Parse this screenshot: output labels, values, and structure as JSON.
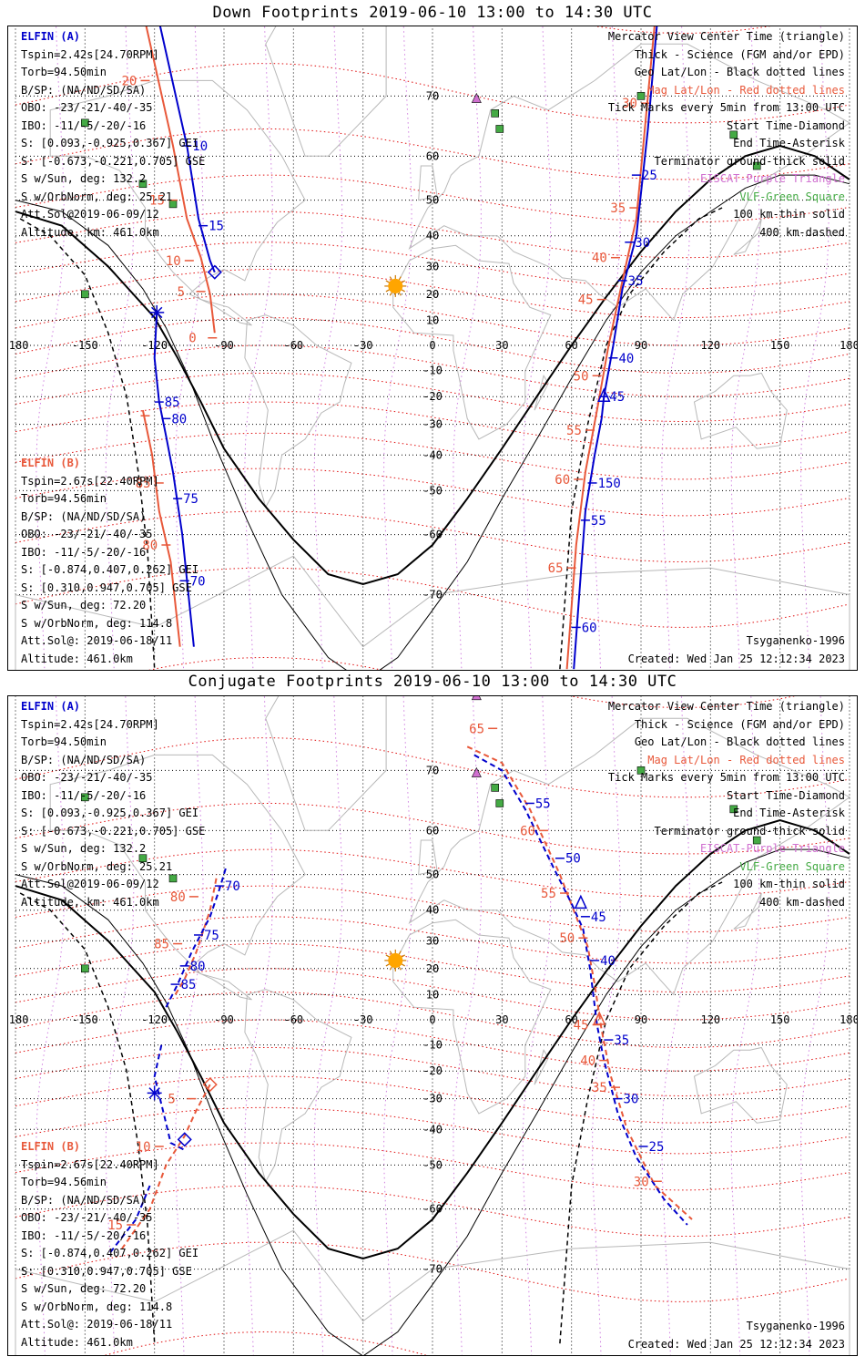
{
  "panels": [
    {
      "title": "Down Footprints 2019-06-10 13:00 to 14:30 UTC",
      "kind": "down",
      "elfin_a": {
        "name": "ELFIN (A)",
        "lines": [
          "Tspin=2.42s[24.70RPM]",
          "Torb=94.50min",
          "B/SP: (NA/ND/SD/SA)",
          "OBO: -23/-21/-40/-35",
          "IBO: -11/-5/-20/-16",
          "S: [0.093,-0.925,0.367] GEI",
          "S: [-0.673,-0.221,0.705] GSE",
          "S w/Sun, deg: 132.2",
          "S w/OrbNorm, deg: 25.21",
          "Att.Sol@2019-06-09/12",
          "Altitude, km: 461.0km"
        ]
      },
      "elfin_b": {
        "name": "ELFIN (B)",
        "lines": [
          "Tspin=2.67s[22.40RPM]",
          "Torb=94.56min",
          "B/SP: (NA/ND/SD/SA)",
          "OBO: -23/-21/-40/-35",
          "IBO: -11/-5/-20/-16",
          "S: [-0.874,0.407,0.262] GEI",
          "S: [0.310,0.947,0.705] GSE",
          "S w/Sun, deg: 72.20",
          "S w/OrbNorm, deg: 114.8",
          "Att.Sol@: 2019-06-18/11",
          "Altitude: 461.0km"
        ]
      },
      "legend": [
        "Mercator View Center Time (triangle)",
        "Thick - Science (FGM and/or EPD)",
        "Geo Lat/Lon - Black dotted lines",
        "Mag Lat/Lon - Red dotted lines",
        "Tick Marks every 5min from 13:00 UTC",
        "Start Time-Diamond",
        "End Time-Asterisk",
        "Terminator ground-thick solid",
        "EISCAT-Purple Triangle",
        "VLF-Green Square",
        "100 km-thin solid",
        "400 km-dashed"
      ],
      "model": "Tsyganenko-1996",
      "created": "Created: Wed Jan 25 12:12:34 2023"
    },
    {
      "title": "Conjugate Footprints 2019-06-10 13:00 to 14:30 UTC",
      "kind": "conj",
      "elfin_a": {
        "name": "ELFIN (A)",
        "lines": [
          "Tspin=2.42s[24.70RPM]",
          "Torb=94.50min",
          "B/SP: (NA/ND/SD/SA)",
          "OBO: -23/-21/-40/-35",
          "IBO: -11/-5/-20/-16",
          "S: [0.093,-0.925,0.367] GEI",
          "S: [-0.673,-0.221,0.705] GSE",
          "S w/Sun, deg: 132.2",
          "S w/OrbNorm, deg: 25.21",
          "Att.Sol@2019-06-09/12",
          "Altitude, km: 461.0km"
        ]
      },
      "elfin_b": {
        "name": "ELFIN (B)",
        "lines": [
          "Tspin=2.67s[22.40RPM]",
          "Torb=94.56min",
          "B/SP: (NA/ND/SD/SA)",
          "OBO: -23/-21/-40/-35",
          "IBO: -11/-5/-20/-16",
          "S: [-0.874,0.407,0.262] GEI",
          "S: [0.310,0.947,0.705] GSE",
          "S w/Sun, deg: 72.20",
          "S w/OrbNorm, deg: 114.8",
          "Att.Sol@: 2019-06-18/11",
          "Altitude: 461.0km"
        ]
      },
      "legend": [
        "Mercator View Center Time (triangle)",
        "Thick - Science (FGM and/or EPD)",
        "Geo Lat/Lon - Black dotted lines",
        "Mag Lat/Lon - Red dotted lines",
        "Tick Marks every 5min from 13:00 UTC",
        "Start Time-Diamond",
        "End Time-Asterisk",
        "Terminator ground-thick solid",
        "EISCAT-Purple Triangle",
        "VLF-Green Square",
        "100 km-thin solid",
        "400 km-dashed"
      ],
      "model": "Tsyganenko-1996",
      "created": "Created: Wed Jan 25 12:12:34 2023"
    }
  ],
  "map_axes": {
    "lon_ticks": [
      -180,
      -150,
      -120,
      -90,
      -60,
      -30,
      0,
      30,
      60,
      90,
      120,
      150,
      180
    ],
    "lon_labels": [
      "-180",
      "-150",
      "-120",
      "-90",
      "-60",
      "-30",
      "0",
      "30",
      "60",
      "90",
      "120",
      "150",
      "180"
    ],
    "lat_ticks": [
      70,
      60,
      50,
      40,
      30,
      20,
      10,
      0,
      -10,
      -20,
      -30,
      -40,
      -50,
      -60,
      -70
    ],
    "lat_labels": [
      "70",
      "60",
      "50",
      "40",
      "30",
      "20",
      "10",
      "0",
      "-10",
      "-20",
      "-30",
      "-40",
      "-50",
      "-60",
      "-70"
    ]
  },
  "colors": {
    "elfin_a": "#0000cc",
    "elfin_b": "#e8583a",
    "mag_grid": "#e01010",
    "geo_grid": "#000000",
    "eiscat": "#d070d0",
    "vlf": "#44aa44",
    "sun": "#ffa500",
    "coast": "#b8b8b8"
  },
  "stations": {
    "eiscat": [
      [
        19,
        78
      ],
      [
        19,
        69.6
      ]
    ],
    "vlf": [
      [
        -150,
        66
      ],
      [
        -125,
        54
      ],
      [
        -112,
        49
      ],
      [
        27,
        67.5
      ],
      [
        29,
        65
      ],
      [
        90,
        70
      ],
      [
        130,
        64
      ],
      [
        140,
        58
      ],
      [
        -150,
        20
      ]
    ]
  },
  "subsolar_point": [
    -16,
    23
  ],
  "tracks": {
    "down": {
      "a": [
        {
          "seg": [
            [
              -118,
              78
            ],
            [
              -106,
              62
            ],
            [
              -101,
              45
            ],
            [
              -96,
              32
            ],
            [
              -94,
              28
            ]
          ],
          "ticks": [
            [
              -106,
              62,
              "10"
            ],
            [
              -99,
              43,
              "15"
            ]
          ]
        },
        {
          "seg": [
            [
              -119,
              13
            ],
            [
              -120,
              -5
            ],
            [
              -118,
              -22
            ],
            [
              -115,
              -34
            ],
            [
              -112,
              -45
            ],
            [
              -108,
              -60
            ],
            [
              -103,
              -76
            ]
          ],
          "ticks": [
            [
              -118,
              -22,
              "85"
            ],
            [
              -115,
              -28,
              "80"
            ],
            [
              -110,
              -52,
              "75"
            ],
            [
              -107,
              -68,
              "70"
            ]
          ]
        },
        {
          "seg": [
            [
              61,
              -78
            ],
            [
              66,
              -55
            ],
            [
              70,
              -40
            ],
            [
              73,
              -28
            ],
            [
              74,
              -20
            ],
            [
              78,
              0
            ],
            [
              82,
              22
            ],
            [
              88,
              40
            ],
            [
              93,
              65
            ],
            [
              97,
              78
            ]
          ],
          "ticks": [
            [
              62,
              -74,
              "60"
            ],
            [
              66,
              -57,
              "55"
            ],
            [
              69,
              -48,
              "150"
            ],
            [
              74,
              -20,
              "45"
            ],
            [
              78,
              -5,
              "40"
            ],
            [
              82,
              25,
              "35"
            ],
            [
              85,
              38,
              "30"
            ],
            [
              88,
              56,
              "25"
            ]
          ]
        }
      ],
      "b": [
        {
          "seg": [
            [
              -124,
              78
            ],
            [
              -112,
              62
            ],
            [
              -106,
              45
            ],
            [
              -100,
              33
            ],
            [
              -96,
              20
            ],
            [
              -94,
              5
            ]
          ],
          "ticks": [
            [
              -124,
              72,
              "20"
            ],
            [
              -112,
              50,
              "15"
            ],
            [
              -105,
              32,
              "10"
            ],
            [
              -100,
              21,
              "5"
            ],
            [
              -95,
              3,
              "0"
            ]
          ]
        },
        {
          "seg": [
            [
              -125,
              -25
            ],
            [
              -121,
              -40
            ],
            [
              -118,
              -55
            ],
            [
              -113,
              -65
            ],
            [
              -109,
              -76
            ]
          ],
          "ticks": [
            [
              -124,
              -27,
              ""
            ],
            [
              -118,
              -48,
              "85"
            ],
            [
              -115,
              -62,
              "80"
            ]
          ]
        },
        {
          "seg": [
            [
              58,
              -78
            ],
            [
              62,
              -62
            ],
            [
              66,
              -45
            ],
            [
              71,
              -25
            ],
            [
              76,
              0
            ],
            [
              82,
              25
            ],
            [
              88,
              45
            ],
            [
              96,
              78
            ]
          ],
          "ticks": [
            [
              60,
              -66,
              "65"
            ],
            [
              63,
              -47,
              "60"
            ],
            [
              68,
              -32,
              "55"
            ],
            [
              71,
              -12,
              "50"
            ],
            [
              73,
              18,
              "45"
            ],
            [
              79,
              33,
              "40"
            ],
            [
              87,
              48,
              "35"
            ],
            [
              92,
              69,
              "30"
            ]
          ]
        }
      ],
      "a_start": [
        -94,
        28
      ],
      "a_end": [
        -119,
        13
      ],
      "a_center": [
        74,
        -20
      ]
    }
  },
  "terminators": {
    "thick": [
      [
        -180,
        47
      ],
      [
        -160,
        43
      ],
      [
        -140,
        30
      ],
      [
        -120,
        11
      ],
      [
        -110,
        -5
      ],
      [
        -100,
        -22
      ],
      [
        -90,
        -38
      ],
      [
        -75,
        -52
      ],
      [
        -60,
        -61
      ],
      [
        -45,
        -67
      ],
      [
        -30,
        -68.5
      ],
      [
        -15,
        -67
      ],
      [
        0,
        -62
      ],
      [
        15,
        -52
      ],
      [
        30,
        -38
      ],
      [
        45,
        -20
      ],
      [
        60,
        0
      ],
      [
        75,
        19
      ],
      [
        90,
        35
      ],
      [
        105,
        47
      ],
      [
        120,
        55
      ],
      [
        135,
        60
      ],
      [
        150,
        62
      ],
      [
        165,
        60
      ],
      [
        180,
        55
      ]
    ],
    "thin": [
      [
        -180,
        50
      ],
      [
        -160,
        47
      ],
      [
        -140,
        37
      ],
      [
        -125,
        22
      ],
      [
        -115,
        7
      ],
      [
        -105,
        -13
      ],
      [
        -95,
        -35
      ],
      [
        -80,
        -57
      ],
      [
        -65,
        -70
      ],
      [
        -45,
        -77
      ],
      [
        -30,
        -79
      ],
      [
        -15,
        -77
      ],
      [
        0,
        -72
      ],
      [
        15,
        -65
      ],
      [
        30,
        -52
      ],
      [
        45,
        -35
      ],
      [
        60,
        -13
      ],
      [
        75,
        10
      ],
      [
        90,
        28
      ],
      [
        105,
        40
      ],
      [
        120,
        47
      ],
      [
        135,
        53
      ],
      [
        150,
        56
      ],
      [
        165,
        56
      ],
      [
        180,
        54
      ]
    ],
    "dashed": [
      [
        -178,
        45
      ],
      [
        -165,
        40
      ],
      [
        -150,
        27
      ],
      [
        -140,
        5
      ],
      [
        -132,
        -20
      ],
      [
        -127,
        -45
      ],
      [
        -123,
        -63
      ],
      [
        -120,
        -78
      ],
      [
        55,
        -78
      ],
      [
        60,
        -55
      ],
      [
        67,
        -30
      ],
      [
        75,
        0
      ],
      [
        85,
        20
      ],
      [
        100,
        35
      ],
      [
        115,
        45
      ],
      [
        125,
        48
      ]
    ]
  }
}
